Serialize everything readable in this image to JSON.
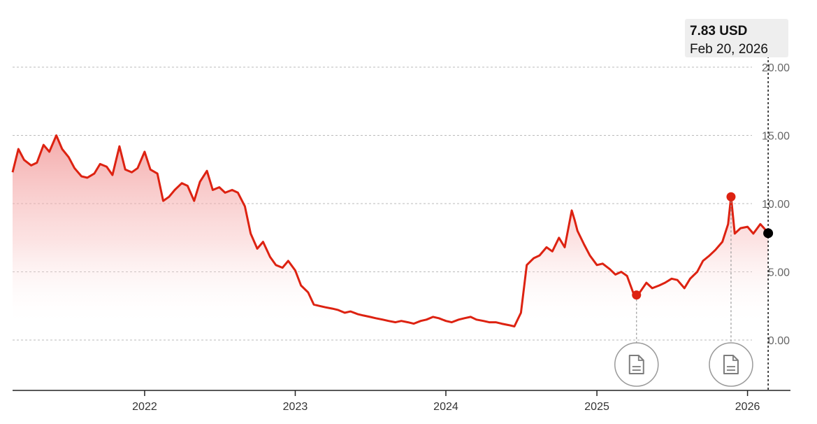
{
  "chart_data": {
    "type": "area",
    "ylim": [
      -1.5,
      21
    ],
    "xlim": [
      "2021-02-15",
      "2026-04-15"
    ],
    "yticks": [
      "0.00",
      "5.00",
      "10.00",
      "15.00",
      "20.00"
    ],
    "xticks": [
      "2022",
      "2023",
      "2024",
      "2025",
      "2026"
    ],
    "grid": "horizontal-dashed",
    "line_color": "#dd2211",
    "fill_color": "#f5aaaa",
    "series": [
      {
        "x": [
          "2021-02-15",
          "2021-03-01",
          "2021-03-15",
          "2021-04-01",
          "2021-04-15",
          "2021-05-01",
          "2021-05-15",
          "2021-06-01",
          "2021-06-15",
          "2021-07-01",
          "2021-07-15",
          "2021-08-01",
          "2021-08-15",
          "2021-09-01",
          "2021-09-15",
          "2021-10-01",
          "2021-10-15",
          "2021-11-01",
          "2021-11-15",
          "2021-12-01",
          "2021-12-15",
          "2022-01-01",
          "2022-01-15",
          "2022-02-01",
          "2022-02-15",
          "2022-03-01",
          "2022-03-15",
          "2022-04-01",
          "2022-04-15",
          "2022-05-01",
          "2022-05-15",
          "2022-06-01",
          "2022-06-15",
          "2022-07-01",
          "2022-07-15",
          "2022-08-01",
          "2022-08-15",
          "2022-09-01",
          "2022-09-15",
          "2022-10-01",
          "2022-10-15",
          "2022-11-01",
          "2022-11-15",
          "2022-12-01",
          "2022-12-15",
          "2023-01-01",
          "2023-01-15",
          "2023-02-01",
          "2023-02-15",
          "2023-03-01",
          "2023-03-15",
          "2023-04-01",
          "2023-04-15",
          "2023-05-01",
          "2023-05-15",
          "2023-06-01",
          "2023-06-15",
          "2023-07-01",
          "2023-07-15",
          "2023-08-01",
          "2023-08-15",
          "2023-09-01",
          "2023-09-15",
          "2023-10-01",
          "2023-10-15",
          "2023-11-01",
          "2023-11-15",
          "2023-12-01",
          "2023-12-15",
          "2024-01-01",
          "2024-01-15",
          "2024-02-01",
          "2024-02-15",
          "2024-03-01",
          "2024-03-15",
          "2024-04-01",
          "2024-04-15",
          "2024-05-01",
          "2024-05-15",
          "2024-06-01",
          "2024-06-15",
          "2024-07-01",
          "2024-07-15",
          "2024-08-01",
          "2024-08-15",
          "2024-09-01",
          "2024-09-15",
          "2024-10-01",
          "2024-10-15",
          "2024-11-01",
          "2024-11-08",
          "2024-11-15",
          "2024-12-01",
          "2024-12-15",
          "2025-01-01",
          "2025-01-15",
          "2025-02-01",
          "2025-02-15",
          "2025-03-01",
          "2025-03-15",
          "2025-04-01",
          "2025-04-15",
          "2025-05-01",
          "2025-05-15",
          "2025-06-01",
          "2025-06-15",
          "2025-07-01",
          "2025-07-15",
          "2025-08-01",
          "2025-08-15",
          "2025-09-01",
          "2025-09-15",
          "2025-10-01",
          "2025-10-15",
          "2025-11-01",
          "2025-11-15",
          "2025-11-22",
          "2025-12-01",
          "2025-12-15",
          "2026-01-01",
          "2026-01-15",
          "2026-02-01",
          "2026-02-10",
          "2026-02-20"
        ],
        "y": [
          12.3,
          14.0,
          13.2,
          12.8,
          13.0,
          14.3,
          13.8,
          15.0,
          14.0,
          13.4,
          12.6,
          12.0,
          11.9,
          12.2,
          12.9,
          12.7,
          12.1,
          14.2,
          12.5,
          12.3,
          12.6,
          13.8,
          12.5,
          12.2,
          10.2,
          10.5,
          11.0,
          11.5,
          11.3,
          10.2,
          11.6,
          12.4,
          11.0,
          11.2,
          10.8,
          11.0,
          10.8,
          9.8,
          7.8,
          6.7,
          7.2,
          6.1,
          5.5,
          5.3,
          5.8,
          5.1,
          4.0,
          3.5,
          2.6,
          2.5,
          2.4,
          2.3,
          2.2,
          2.0,
          2.1,
          1.9,
          1.8,
          1.7,
          1.6,
          1.5,
          1.4,
          1.3,
          1.4,
          1.3,
          1.2,
          1.4,
          1.5,
          1.7,
          1.6,
          1.4,
          1.3,
          1.5,
          1.6,
          1.7,
          1.5,
          1.4,
          1.3,
          1.3,
          1.2,
          1.1,
          1.0,
          2.0,
          5.5,
          6.0,
          6.2,
          6.8,
          6.5,
          7.5,
          6.8,
          9.5,
          8.8,
          8.0,
          7.0,
          6.2,
          5.5,
          5.6,
          5.2,
          4.8,
          5.0,
          4.7,
          3.3,
          3.5,
          4.2,
          3.8,
          4.0,
          4.2,
          4.5,
          4.4,
          3.8,
          4.5,
          5.0,
          5.8,
          6.2,
          6.6,
          7.2,
          8.5,
          10.5,
          7.8,
          8.2,
          8.3,
          7.8,
          8.5,
          8.2,
          7.83
        ]
      }
    ],
    "highlights": [
      {
        "x": "2025-04-07",
        "y": 3.3
      },
      {
        "x": "2025-11-22",
        "y": 10.5
      }
    ],
    "current": {
      "x": "2026-02-20",
      "y": 7.83
    },
    "tooltip": {
      "value_label": "7.83 USD",
      "date_label": "Feb 20, 2026"
    }
  },
  "icons": {
    "event_marker": "document-icon"
  }
}
